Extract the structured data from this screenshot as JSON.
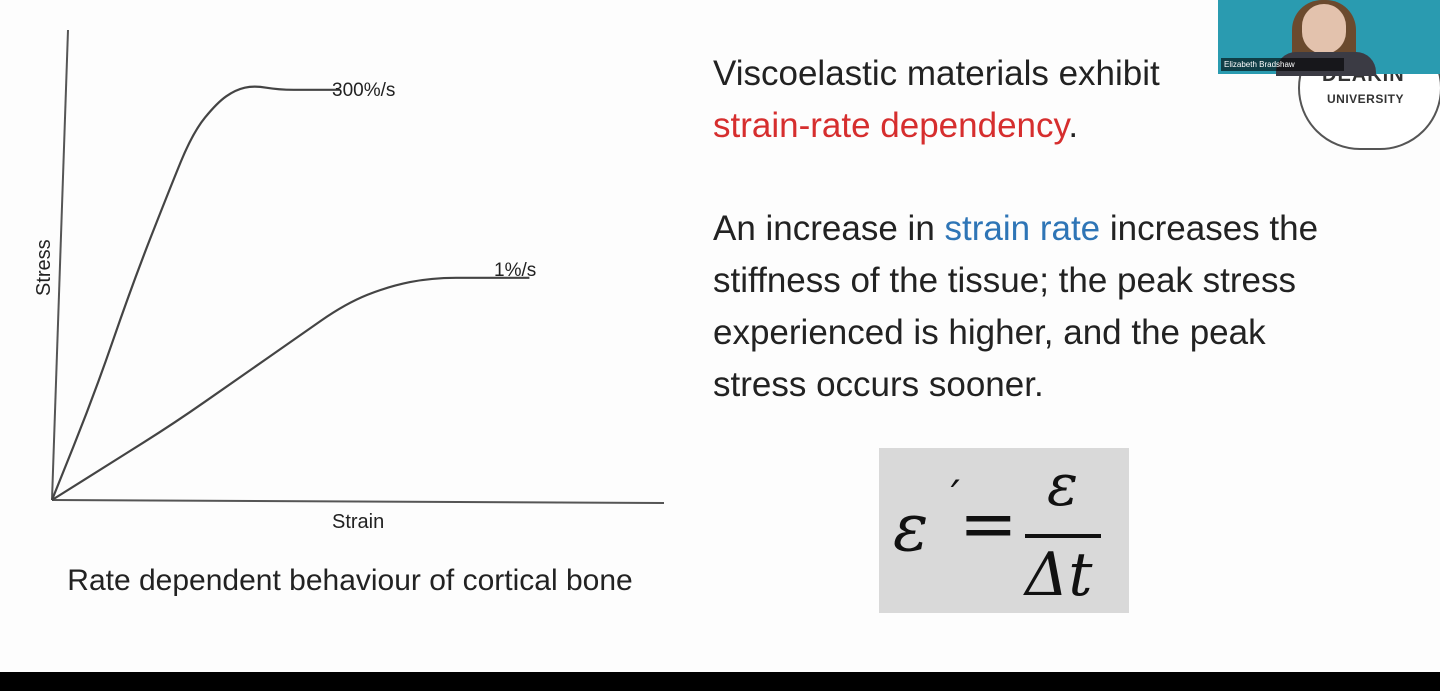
{
  "chart_data": {
    "type": "line",
    "title": "",
    "xlabel": "Strain",
    "ylabel": "Stress",
    "grid": false,
    "series": [
      {
        "name": "300%/s",
        "x": [
          0,
          0.07,
          0.13,
          0.19,
          0.23,
          0.27,
          0.3,
          0.33,
          0.37,
          0.42,
          0.47
        ],
        "y": [
          0,
          0.25,
          0.5,
          0.72,
          0.86,
          0.93,
          0.96,
          0.97,
          0.96,
          0.96,
          0.96
        ]
      },
      {
        "name": "1%/s",
        "x": [
          0,
          0.1,
          0.2,
          0.3,
          0.4,
          0.48,
          0.55,
          0.62,
          0.7,
          0.78
        ],
        "y": [
          0,
          0.09,
          0.18,
          0.28,
          0.38,
          0.46,
          0.5,
          0.52,
          0.52,
          0.52
        ]
      }
    ],
    "xlim": [
      0,
      1
    ],
    "ylim": [
      0,
      1.1
    ]
  },
  "caption": "Rate dependent behaviour of cortical bone",
  "right_text": {
    "p1_part1": "Viscoelastic materials exhibit ",
    "p1_highlight": "strain-rate dependency",
    "p1_part2": ".",
    "p2_part1": "An increase in ",
    "p2_highlight": "strain rate",
    "p2_part2": " increases the stiffness of the tissue; the peak stress experienced is higher, and the peak stress occurs sooner."
  },
  "formula": {
    "lhs": "ε",
    "prime": "´",
    "equals": "=",
    "numerator": "ε",
    "denominator": "Δt"
  },
  "logo": {
    "name": "DEAKIN",
    "sub": "UNIVERSITY"
  },
  "webcam": {
    "name": "Elizabeth Bradshaw"
  },
  "colors": {
    "highlight_red": "#d62e2e",
    "highlight_blue": "#2e75b6",
    "formula_bg": "#d9d9d9",
    "webcam_bg": "#2a9bb0"
  }
}
